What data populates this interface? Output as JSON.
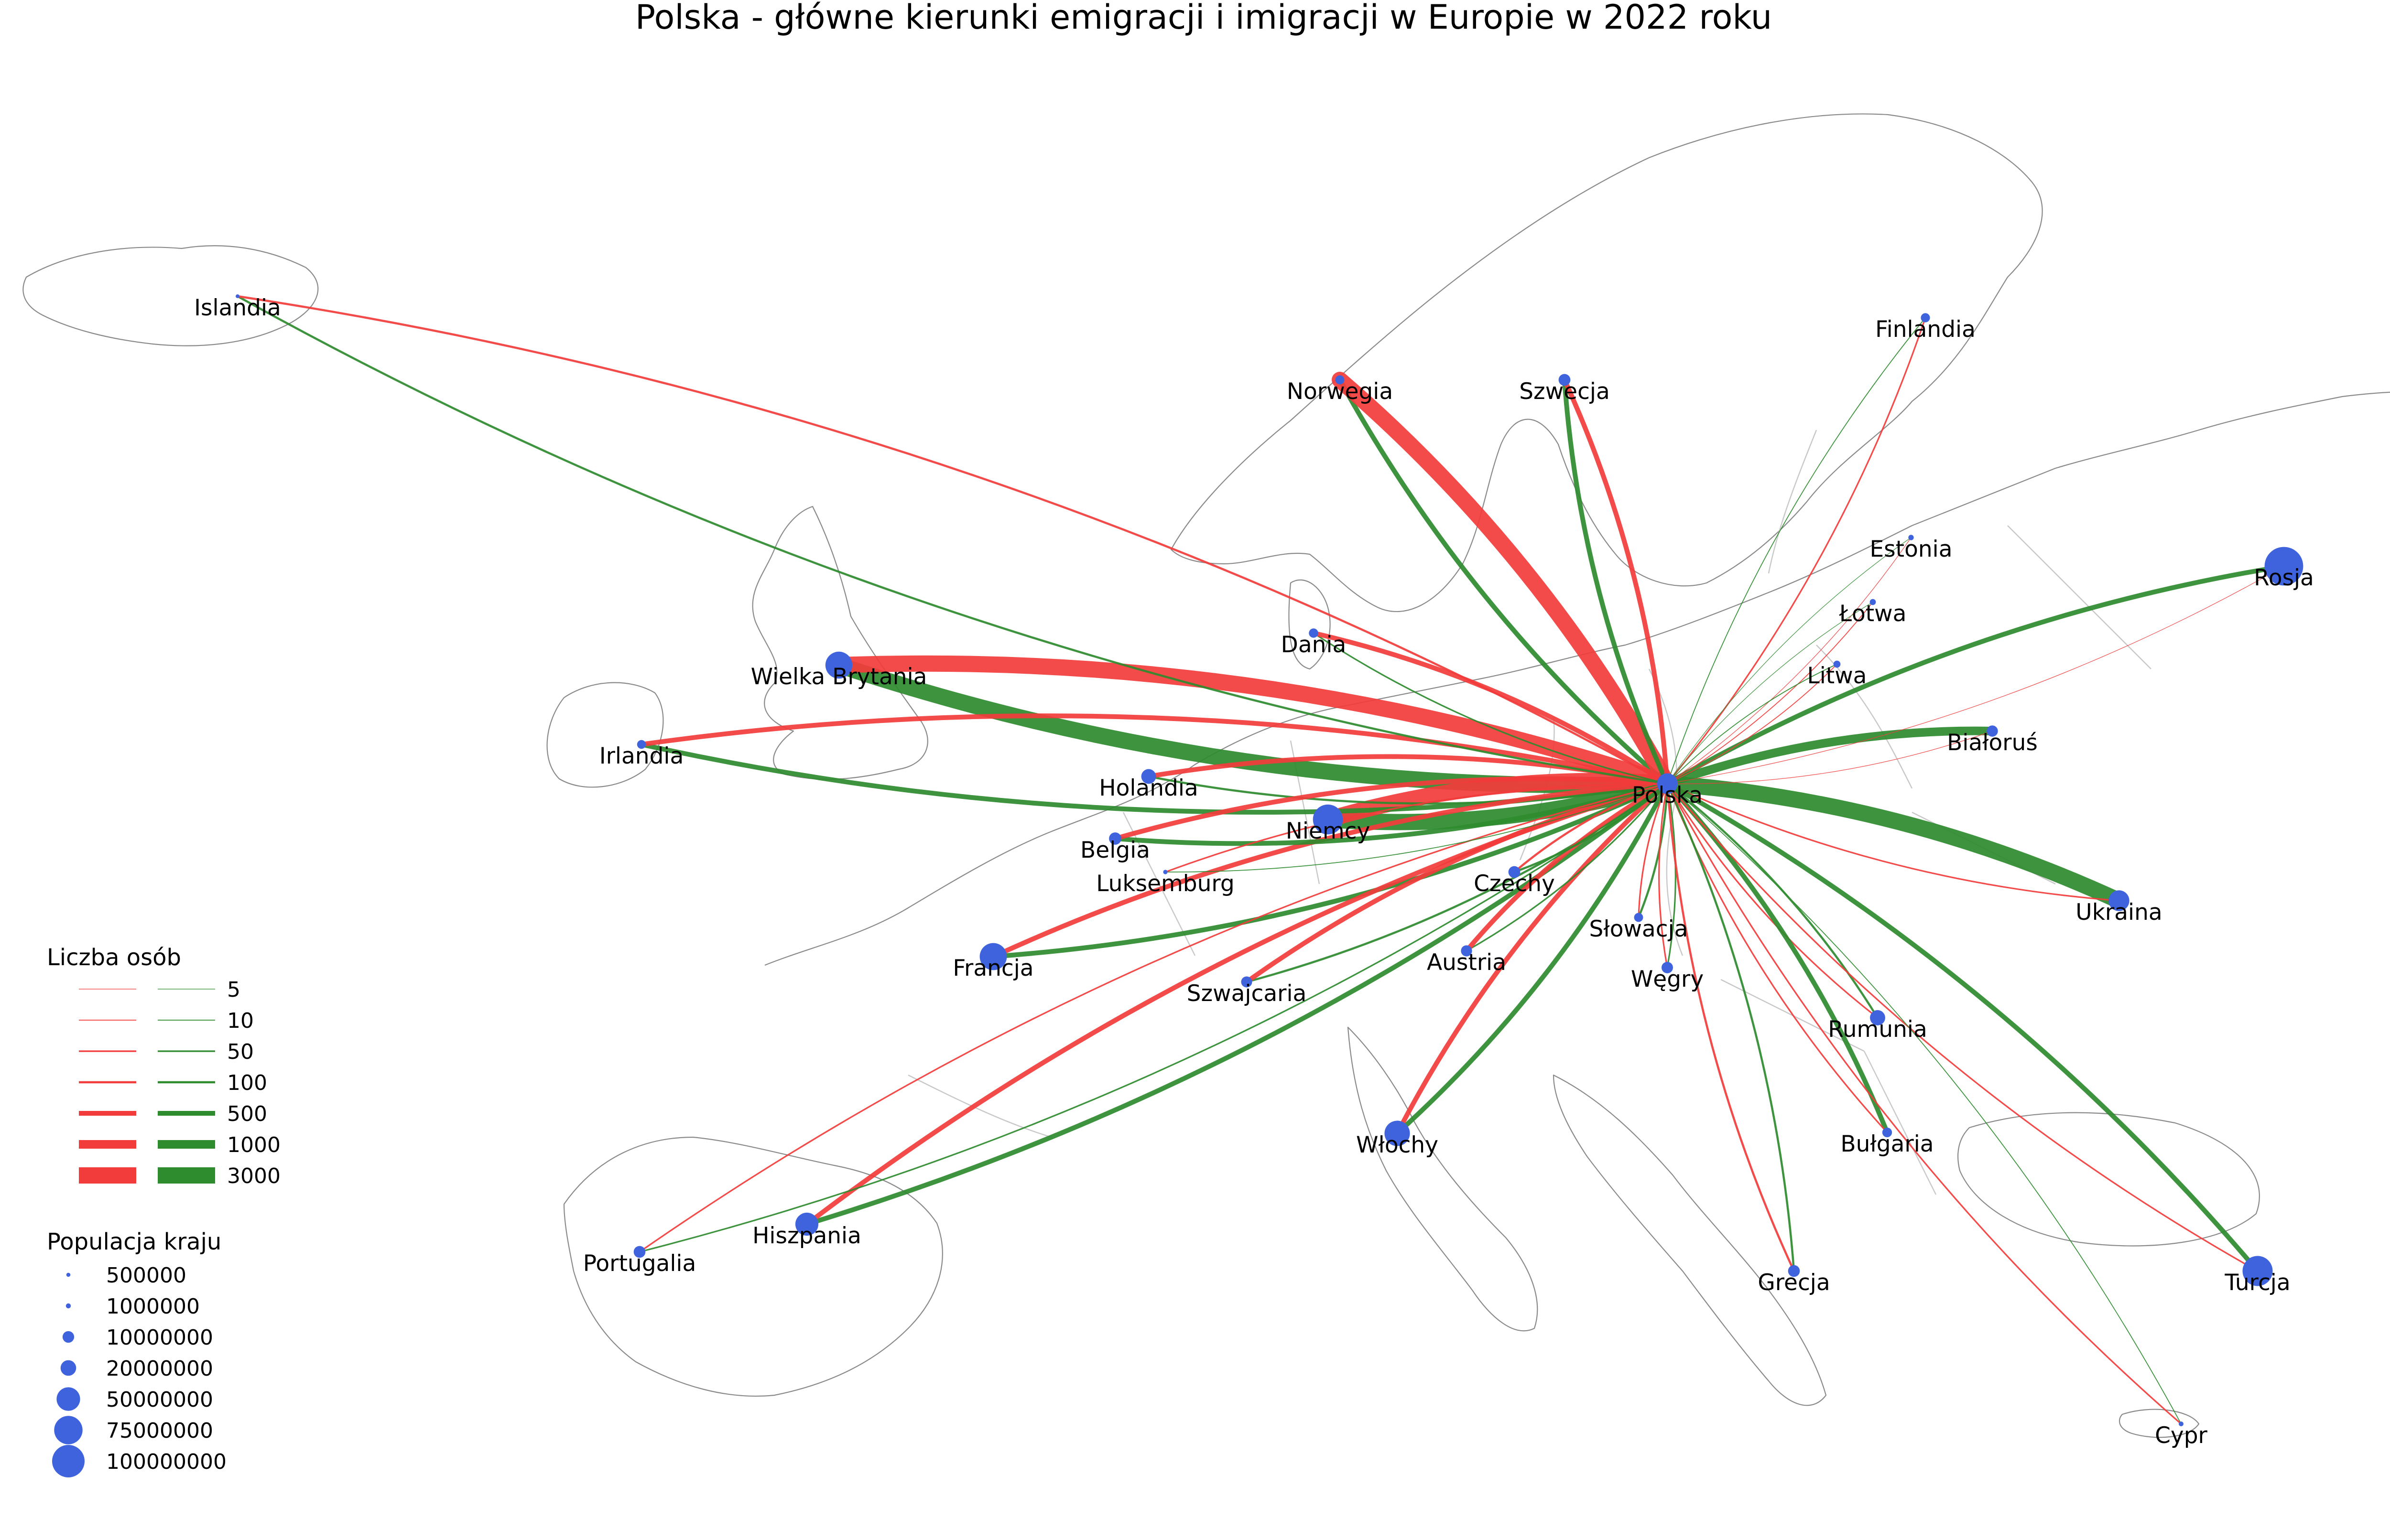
{
  "title": "Polska - główne kierunki emigracji i imigracji w Europie w 2022 roku",
  "colors": {
    "emigration": "#f23b3b",
    "immigration": "#2e8b2e",
    "node": "#3f63dd",
    "coast": "#8a8a8a",
    "border": "#c8c8c8"
  },
  "hub": "Polska",
  "countries": [
    {
      "name": "Polska",
      "population": 37700000
    },
    {
      "name": "Islandia",
      "population": 380000
    },
    {
      "name": "Norwegia",
      "population": 5500000
    },
    {
      "name": "Szwecja",
      "population": 10500000
    },
    {
      "name": "Finlandia",
      "population": 5600000
    },
    {
      "name": "Estonia",
      "population": 1330000
    },
    {
      "name": "Łotwa",
      "population": 1880000
    },
    {
      "name": "Litwa",
      "population": 2800000
    },
    {
      "name": "Rosja",
      "population": 144000000
    },
    {
      "name": "Białoruś",
      "population": 9200000
    },
    {
      "name": "Ukraina",
      "population": 38000000
    },
    {
      "name": "Dania",
      "population": 5900000
    },
    {
      "name": "Wielka Brytania",
      "population": 67000000
    },
    {
      "name": "Irlandia",
      "population": 5100000
    },
    {
      "name": "Holandia",
      "population": 17700000
    },
    {
      "name": "Niemcy",
      "population": 83800000
    },
    {
      "name": "Belgia",
      "population": 11600000
    },
    {
      "name": "Luksemburg",
      "population": 650000
    },
    {
      "name": "Czechy",
      "population": 10500000
    },
    {
      "name": "Słowacja",
      "population": 5400000
    },
    {
      "name": "Węgry",
      "population": 9700000
    },
    {
      "name": "Austria",
      "population": 9000000
    },
    {
      "name": "Francja",
      "population": 68000000
    },
    {
      "name": "Szwajcaria",
      "population": 8800000
    },
    {
      "name": "Rumunia",
      "population": 19000000
    },
    {
      "name": "Bułgaria",
      "population": 6500000
    },
    {
      "name": "Włochy",
      "population": 59000000
    },
    {
      "name": "Hiszpania",
      "population": 47600000
    },
    {
      "name": "Portugalia",
      "population": 10400000
    },
    {
      "name": "Grecja",
      "population": 10400000
    },
    {
      "name": "Turcja",
      "population": 85000000
    },
    {
      "name": "Cypr",
      "population": 900000
    }
  ],
  "flows": [
    {
      "country": "Wielka Brytania",
      "emigration": 3000,
      "immigration": 2000
    },
    {
      "country": "Niemcy",
      "emigration": 2000,
      "immigration": 2000
    },
    {
      "country": "Ukraina",
      "emigration": 30,
      "immigration": 3000
    },
    {
      "country": "Norwegia",
      "emigration": 1200,
      "immigration": 200
    },
    {
      "country": "Holandia",
      "emigration": 500,
      "immigration": 100
    },
    {
      "country": "Irlandia",
      "emigration": 400,
      "immigration": 300
    },
    {
      "country": "Białoruś",
      "emigration": 5,
      "immigration": 1000
    },
    {
      "country": "Rosja",
      "emigration": 5,
      "immigration": 300
    },
    {
      "country": "Francja",
      "emigration": 300,
      "immigration": 500
    },
    {
      "country": "Szwecja",
      "emigration": 300,
      "immigration": 200
    },
    {
      "country": "Włochy",
      "emigration": 300,
      "immigration": 400
    },
    {
      "country": "Hiszpania",
      "emigration": 300,
      "immigration": 200
    },
    {
      "country": "Szwajcaria",
      "emigration": 200,
      "immigration": 100
    },
    {
      "country": "Belgia",
      "emigration": 200,
      "immigration": 200
    },
    {
      "country": "Austria",
      "emigration": 200,
      "immigration": 50
    },
    {
      "country": "Czechy",
      "emigration": 100,
      "immigration": 100
    },
    {
      "country": "Dania",
      "emigration": 150,
      "immigration": 30
    },
    {
      "country": "Islandia",
      "emigration": 100,
      "immigration": 100
    },
    {
      "country": "Finlandia",
      "emigration": 50,
      "immigration": 10
    },
    {
      "country": "Estonia",
      "emigration": 5,
      "immigration": 5
    },
    {
      "country": "Łotwa",
      "emigration": 10,
      "immigration": 5
    },
    {
      "country": "Litwa",
      "emigration": 10,
      "immigration": 10
    },
    {
      "country": "Słowacja",
      "emigration": 30,
      "immigration": 100
    },
    {
      "country": "Węgry",
      "emigration": 30,
      "immigration": 50
    },
    {
      "country": "Rumunia",
      "emigration": 50,
      "immigration": 100
    },
    {
      "country": "Bułgaria",
      "emigration": 30,
      "immigration": 150
    },
    {
      "country": "Grecja",
      "emigration": 100,
      "immigration": 100
    },
    {
      "country": "Turcja",
      "emigration": 50,
      "immigration": 200
    },
    {
      "country": "Cypr",
      "emigration": 50,
      "immigration": 10
    },
    {
      "country": "Portugalia",
      "emigration": 50,
      "immigration": 30
    },
    {
      "country": "Luksemburg",
      "emigration": 50,
      "immigration": 10
    }
  ],
  "legend": {
    "flow_title": "Liczba osób",
    "flow_values": [
      5,
      10,
      50,
      100,
      500,
      1000,
      3000
    ],
    "population_title": "Populacja kraju",
    "population_values": [
      500000,
      1000000,
      10000000,
      20000000,
      50000000,
      75000000,
      100000000
    ]
  }
}
